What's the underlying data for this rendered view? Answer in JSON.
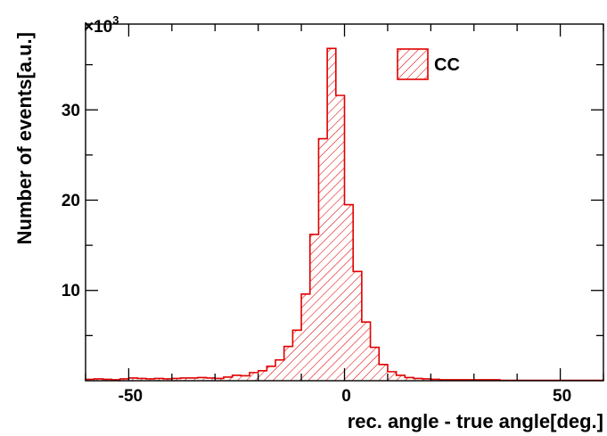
{
  "chart_data": {
    "type": "histogram",
    "xlabel": "rec. angle - true angle[deg.]",
    "ylabel": "Number of events[a.u.]",
    "y_multiplier": {
      "base": "×10",
      "exponent": "3"
    },
    "xlim": [
      -60,
      60
    ],
    "ylim": [
      0,
      39.5
    ],
    "x_tick_labels": [
      "-50",
      "0",
      "50"
    ],
    "y_tick_labels": [
      "10",
      "20",
      "30"
    ],
    "legend": [
      "CC"
    ],
    "legend_position": "top-right",
    "grid": false,
    "fill": "hatched",
    "color": "#e00000",
    "bin_width": 2,
    "bin_edges_start": -60,
    "values": [
      0.15,
      0.2,
      0.15,
      0.1,
      0.2,
      0.3,
      0.25,
      0.2,
      0.25,
      0.2,
      0.25,
      0.3,
      0.3,
      0.35,
      0.3,
      0.25,
      0.4,
      0.6,
      0.55,
      0.9,
      1.1,
      1.6,
      2.3,
      3.8,
      5.6,
      9.6,
      16.2,
      26.8,
      36.8,
      31.6,
      19.5,
      12.1,
      6.5,
      3.7,
      1.8,
      1.0,
      0.6,
      0.35,
      0.25,
      0.2,
      0.15,
      0.1,
      0.1,
      0.1,
      0.1,
      0.1,
      0.1,
      0.1,
      0.05,
      0.05,
      0.05,
      0.05,
      0.05,
      0.05,
      0.05,
      0.05,
      0.05,
      0.05,
      0.05,
      0.05
    ]
  }
}
